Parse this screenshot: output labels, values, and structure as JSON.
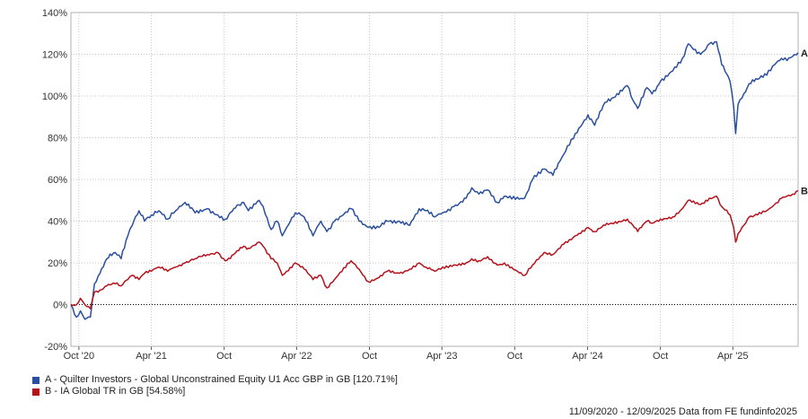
{
  "chart_data": {
    "type": "line",
    "y_unit": "%",
    "ylim": [
      -20,
      140
    ],
    "y_ticks": [
      -20,
      0,
      20,
      40,
      60,
      80,
      100,
      120,
      140
    ],
    "y_tick_labels": [
      "-20%",
      "0%",
      "20%",
      "40%",
      "60%",
      "80%",
      "100%",
      "120%",
      "140%"
    ],
    "x_range": [
      "2020-09-11",
      "2025-09-12"
    ],
    "x_ticks": [
      {
        "date": "2020-10-01",
        "label": "Oct '20"
      },
      {
        "date": "2021-04-01",
        "label": "Apr '21"
      },
      {
        "date": "2021-10-01",
        "label": "Oct"
      },
      {
        "date": "2022-04-01",
        "label": "Apr '22"
      },
      {
        "date": "2022-10-01",
        "label": "Oct"
      },
      {
        "date": "2023-04-01",
        "label": "Apr '23"
      },
      {
        "date": "2023-10-01",
        "label": "Oct"
      },
      {
        "date": "2024-04-01",
        "label": "Apr '24"
      },
      {
        "date": "2024-10-01",
        "label": "Oct"
      },
      {
        "date": "2025-04-01",
        "label": "Apr '25"
      }
    ],
    "grid": true,
    "zero_line": "dotted",
    "series": [
      {
        "key": "A",
        "name": "A - Quilter Investors - Global Unconstrained Equity U1 Acc GBP in GB [120.71%]",
        "color": "#2a4f9e",
        "points": [
          [
            "2020-09-11",
            0
          ],
          [
            "2020-09-25",
            -6
          ],
          [
            "2020-10-05",
            -3
          ],
          [
            "2020-10-16",
            -7
          ],
          [
            "2020-10-30",
            -6
          ],
          [
            "2020-11-09",
            10
          ],
          [
            "2020-11-23",
            15
          ],
          [
            "2020-12-10",
            22
          ],
          [
            "2020-12-31",
            25
          ],
          [
            "2021-01-15",
            22
          ],
          [
            "2021-02-01",
            33
          ],
          [
            "2021-02-12",
            38
          ],
          [
            "2021-03-01",
            45
          ],
          [
            "2021-03-15",
            40
          ],
          [
            "2021-04-01",
            43
          ],
          [
            "2021-04-20",
            45
          ],
          [
            "2021-05-12",
            41
          ],
          [
            "2021-06-01",
            45
          ],
          [
            "2021-06-25",
            49
          ],
          [
            "2021-07-20",
            44
          ],
          [
            "2021-08-20",
            46
          ],
          [
            "2021-09-15",
            43
          ],
          [
            "2021-10-04",
            41
          ],
          [
            "2021-10-25",
            46
          ],
          [
            "2021-11-19",
            49
          ],
          [
            "2021-12-01",
            45
          ],
          [
            "2021-12-28",
            50
          ],
          [
            "2022-01-07",
            47
          ],
          [
            "2022-01-27",
            36
          ],
          [
            "2022-02-11",
            40
          ],
          [
            "2022-02-24",
            33
          ],
          [
            "2022-03-07",
            37
          ],
          [
            "2022-03-29",
            44
          ],
          [
            "2022-04-20",
            42
          ],
          [
            "2022-05-12",
            33
          ],
          [
            "2022-06-01",
            40
          ],
          [
            "2022-06-16",
            35
          ],
          [
            "2022-07-05",
            40
          ],
          [
            "2022-08-16",
            46
          ],
          [
            "2022-09-05",
            40
          ],
          [
            "2022-09-28",
            37
          ],
          [
            "2022-10-25",
            37
          ],
          [
            "2022-11-15",
            40
          ],
          [
            "2022-12-15",
            40
          ],
          [
            "2023-01-10",
            38
          ],
          [
            "2023-02-03",
            46
          ],
          [
            "2023-02-20",
            45
          ],
          [
            "2023-03-14",
            42
          ],
          [
            "2023-04-03",
            44
          ],
          [
            "2023-05-01",
            47
          ],
          [
            "2023-06-01",
            51
          ],
          [
            "2023-06-15",
            56
          ],
          [
            "2023-07-03",
            53
          ],
          [
            "2023-07-25",
            55
          ],
          [
            "2023-08-18",
            49
          ],
          [
            "2023-09-05",
            52
          ],
          [
            "2023-10-26",
            51
          ],
          [
            "2023-11-15",
            60
          ],
          [
            "2023-12-14",
            65
          ],
          [
            "2024-01-05",
            62
          ],
          [
            "2024-02-01",
            72
          ],
          [
            "2024-03-01",
            82
          ],
          [
            "2024-04-02",
            91
          ],
          [
            "2024-04-19",
            86
          ],
          [
            "2024-05-15",
            97
          ],
          [
            "2024-06-01",
            99
          ],
          [
            "2024-07-10",
            105
          ],
          [
            "2024-07-24",
            98
          ],
          [
            "2024-08-05",
            94
          ],
          [
            "2024-08-28",
            104
          ],
          [
            "2024-09-10",
            101
          ],
          [
            "2024-10-01",
            107
          ],
          [
            "2024-11-01",
            112
          ],
          [
            "2024-11-25",
            118
          ],
          [
            "2024-12-10",
            125
          ],
          [
            "2025-01-10",
            120
          ],
          [
            "2025-02-01",
            125
          ],
          [
            "2025-02-19",
            126
          ],
          [
            "2025-03-04",
            115
          ],
          [
            "2025-03-25",
            107
          ],
          [
            "2025-04-03",
            95
          ],
          [
            "2025-04-08",
            82
          ],
          [
            "2025-04-14",
            96
          ],
          [
            "2025-04-24",
            99
          ],
          [
            "2025-05-12",
            106
          ],
          [
            "2025-06-02",
            108
          ],
          [
            "2025-06-25",
            110
          ],
          [
            "2025-07-15",
            115
          ],
          [
            "2025-08-01",
            118
          ],
          [
            "2025-08-15",
            117
          ],
          [
            "2025-08-29",
            119
          ],
          [
            "2025-09-12",
            120.71
          ]
        ]
      },
      {
        "key": "B",
        "name": "B - IA Global TR in GB [54.58%]",
        "color": "#b5121b",
        "points": [
          [
            "2020-09-11",
            0
          ],
          [
            "2020-09-25",
            0
          ],
          [
            "2020-10-05",
            3
          ],
          [
            "2020-10-16",
            0
          ],
          [
            "2020-10-30",
            -2
          ],
          [
            "2020-11-09",
            6
          ],
          [
            "2020-11-23",
            7
          ],
          [
            "2020-12-10",
            9
          ],
          [
            "2020-12-31",
            10
          ],
          [
            "2021-01-15",
            9
          ],
          [
            "2021-02-01",
            12
          ],
          [
            "2021-02-12",
            14
          ],
          [
            "2021-03-01",
            12
          ],
          [
            "2021-03-15",
            15
          ],
          [
            "2021-04-01",
            16
          ],
          [
            "2021-04-20",
            18
          ],
          [
            "2021-05-12",
            16
          ],
          [
            "2021-06-01",
            18
          ],
          [
            "2021-06-25",
            20
          ],
          [
            "2021-07-20",
            22
          ],
          [
            "2021-08-20",
            24
          ],
          [
            "2021-09-15",
            25
          ],
          [
            "2021-10-04",
            21
          ],
          [
            "2021-10-25",
            24
          ],
          [
            "2021-11-19",
            28
          ],
          [
            "2021-12-01",
            27
          ],
          [
            "2021-12-28",
            30
          ],
          [
            "2022-01-07",
            28
          ],
          [
            "2022-01-27",
            22
          ],
          [
            "2022-02-11",
            20
          ],
          [
            "2022-02-24",
            14
          ],
          [
            "2022-03-07",
            16
          ],
          [
            "2022-03-29",
            20
          ],
          [
            "2022-04-20",
            17
          ],
          [
            "2022-05-12",
            12
          ],
          [
            "2022-06-01",
            14
          ],
          [
            "2022-06-16",
            8
          ],
          [
            "2022-07-05",
            12
          ],
          [
            "2022-08-16",
            21
          ],
          [
            "2022-09-05",
            17
          ],
          [
            "2022-09-28",
            11
          ],
          [
            "2022-10-25",
            13
          ],
          [
            "2022-11-15",
            16
          ],
          [
            "2022-12-15",
            15
          ],
          [
            "2023-01-10",
            17
          ],
          [
            "2023-02-03",
            20
          ],
          [
            "2023-02-20",
            18
          ],
          [
            "2023-03-14",
            16
          ],
          [
            "2023-04-03",
            18
          ],
          [
            "2023-05-01",
            19
          ],
          [
            "2023-06-01",
            20
          ],
          [
            "2023-06-15",
            22
          ],
          [
            "2023-07-03",
            21
          ],
          [
            "2023-07-25",
            23
          ],
          [
            "2023-08-18",
            19
          ],
          [
            "2023-09-05",
            20
          ],
          [
            "2023-10-26",
            14
          ],
          [
            "2023-11-15",
            19
          ],
          [
            "2023-12-14",
            25
          ],
          [
            "2024-01-05",
            24
          ],
          [
            "2024-02-01",
            29
          ],
          [
            "2024-03-01",
            33
          ],
          [
            "2024-04-02",
            37
          ],
          [
            "2024-04-19",
            35
          ],
          [
            "2024-05-15",
            38
          ],
          [
            "2024-06-01",
            39
          ],
          [
            "2024-07-10",
            41
          ],
          [
            "2024-07-24",
            38
          ],
          [
            "2024-08-05",
            35
          ],
          [
            "2024-08-28",
            40
          ],
          [
            "2024-09-10",
            39
          ],
          [
            "2024-10-01",
            41
          ],
          [
            "2024-11-01",
            42
          ],
          [
            "2024-11-25",
            46
          ],
          [
            "2024-12-10",
            50
          ],
          [
            "2025-01-10",
            48
          ],
          [
            "2025-02-01",
            51
          ],
          [
            "2025-02-19",
            52
          ],
          [
            "2025-03-04",
            47
          ],
          [
            "2025-03-25",
            43
          ],
          [
            "2025-04-03",
            37
          ],
          [
            "2025-04-08",
            30
          ],
          [
            "2025-04-14",
            34
          ],
          [
            "2025-04-24",
            37
          ],
          [
            "2025-05-12",
            42
          ],
          [
            "2025-06-02",
            43
          ],
          [
            "2025-06-25",
            45
          ],
          [
            "2025-07-15",
            48
          ],
          [
            "2025-08-01",
            51
          ],
          [
            "2025-08-15",
            52
          ],
          [
            "2025-08-29",
            53
          ],
          [
            "2025-09-12",
            54.58
          ]
        ]
      }
    ]
  },
  "legend": [
    {
      "name": "A - Quilter Investors - Global Unconstrained Equity U1 Acc GBP in GB [120.71%]",
      "color": "#2a4f9e"
    },
    {
      "name": "B - IA Global TR in GB [54.58%]",
      "color": "#b5121b"
    }
  ],
  "footer": "11/09/2020 - 12/09/2025 Data from FE fundinfo2025"
}
